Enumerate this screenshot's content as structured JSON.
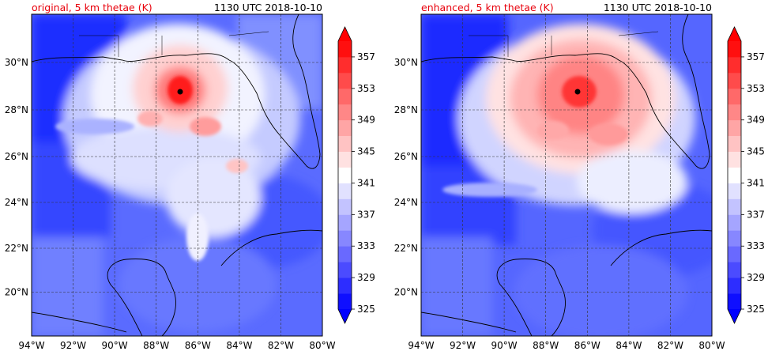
{
  "panels": [
    {
      "id": "left",
      "title_left": "original, 5 km thetae (K)",
      "title_right": "1130 UTC 2018-10-10",
      "title_left_color": "#e8000b",
      "storm": {
        "lon": -86.9,
        "lat": 28.8
      }
    },
    {
      "id": "right",
      "title_left": "enhanced, 5 km thetae (K)",
      "title_right": "1130 UTC 2018-10-10",
      "title_left_color": "#e8000b",
      "storm": {
        "lon": -86.4,
        "lat": 28.8
      }
    }
  ],
  "map": {
    "lon_range": [
      -94,
      -80
    ],
    "lat_range": [
      18.3,
      32.0
    ],
    "x_ticks": [
      "94°W",
      "92°W",
      "90°W",
      "88°W",
      "86°W",
      "84°W",
      "82°W",
      "80°W"
    ],
    "x_tick_values": [
      -94,
      -92,
      -90,
      -88,
      -86,
      -84,
      -82,
      -80
    ],
    "y_ticks": [
      "20°N",
      "22°N",
      "24°N",
      "26°N",
      "28°N",
      "30°N"
    ],
    "y_tick_values": [
      20,
      22,
      24,
      26,
      28,
      30
    ],
    "grid": "dashed"
  },
  "colorbar": {
    "min": 325,
    "max": 359,
    "step": 2,
    "tick_labels": [
      "325",
      "329",
      "333",
      "337",
      "341",
      "345",
      "349",
      "353",
      "357"
    ],
    "tick_values": [
      325,
      329,
      333,
      337,
      341,
      345,
      349,
      353,
      357
    ],
    "extend": "both",
    "cold_color": "#0000ff",
    "mid_color": "#ffffff",
    "warm_color": "#ff0000"
  }
}
